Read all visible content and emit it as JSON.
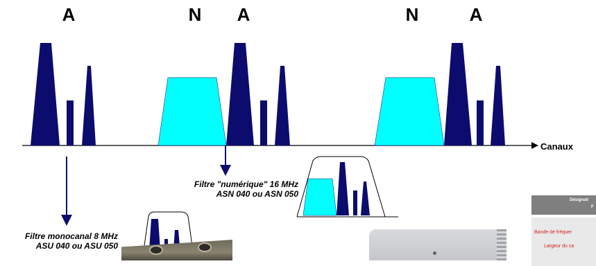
{
  "labels": {
    "letters": [
      "A",
      "N",
      "A",
      "N",
      "A"
    ],
    "axis": "Canaux",
    "filter_numeric": {
      "line1": "Filtre \"numérique\" 16 MHz",
      "line2": "ASN 040 ou ASN 050"
    },
    "filter_mono": {
      "line1": "Filtre monocanal 8 MHz",
      "line2": "ASU 040 ou ASU 050"
    }
  },
  "spec_table": {
    "header_partial": [
      "Désignati",
      "F"
    ],
    "rows_partial": [
      "Bande de fréquer",
      "Largeur du ca"
    ]
  },
  "colors": {
    "analog": "#0c0c6e",
    "digital": "#00ffff",
    "axis": "#000000",
    "arrow": "#0c0c6e"
  }
}
